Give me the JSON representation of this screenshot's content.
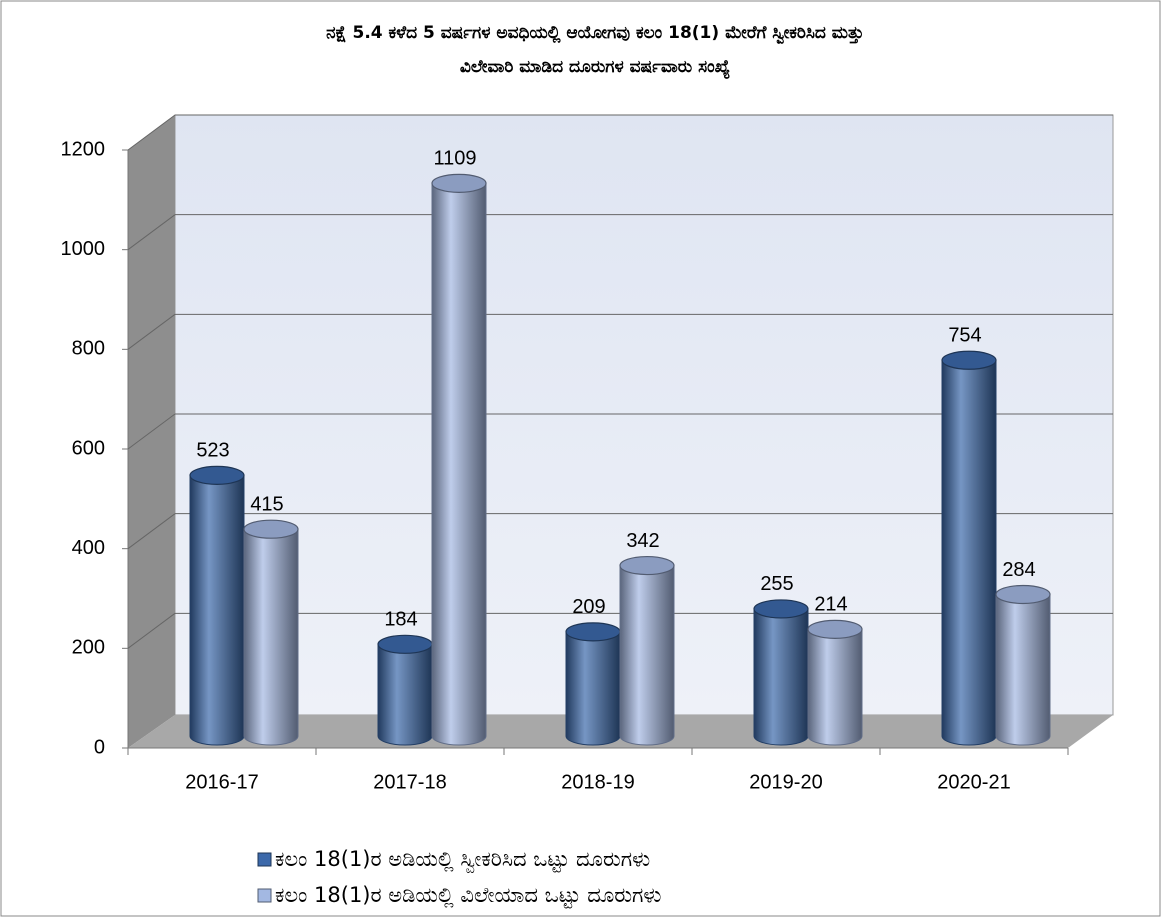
{
  "chart_data": {
    "type": "bar3d",
    "title": [
      "ನಕ್ಷೆ 5.4 ಕಳೆದ 5 ವರ್ಷಗಳ ಅವಧಿಯಲ್ಲಿ ಆಯೋಗವು ಕಲಂ 18(1) ಮೇರೆಗೆ ಸ್ವೀಕರಿಸಿದ ಮತ್ತು",
      "ವಿಲೇವಾರಿ ಮಾಡಿದ ದೂರುಗಳ ವರ್ಷವಾರು ಸಂಖ್ಯೆ"
    ],
    "categories": [
      "2016-17",
      "2017-18",
      "2018-19",
      "2019-20",
      "2020-21"
    ],
    "series": [
      {
        "name": "ಕಲಂ 18(1)ರ ಅಡಿಯಲ್ಲಿ ಸ್ವೀಕರಿಸಿದ ಒಟ್ಟು ದೂರುಗಳು",
        "color": "#3c69aa",
        "values": [
          523,
          184,
          209,
          255,
          754
        ]
      },
      {
        "name": "ಕಲಂ 18(1)ರ ಅಡಿಯಲ್ಲಿ ವಿಲೇಯಾದ ಒಟ್ಟು ದೂರುಗಳು",
        "color": "#a3b8e2",
        "values": [
          415,
          1109,
          342,
          214,
          284
        ]
      }
    ],
    "ylim": [
      0,
      1200
    ],
    "yticks": [
      0,
      200,
      400,
      600,
      800,
      1000,
      1200
    ],
    "grid": true,
    "legend": "bottom"
  }
}
